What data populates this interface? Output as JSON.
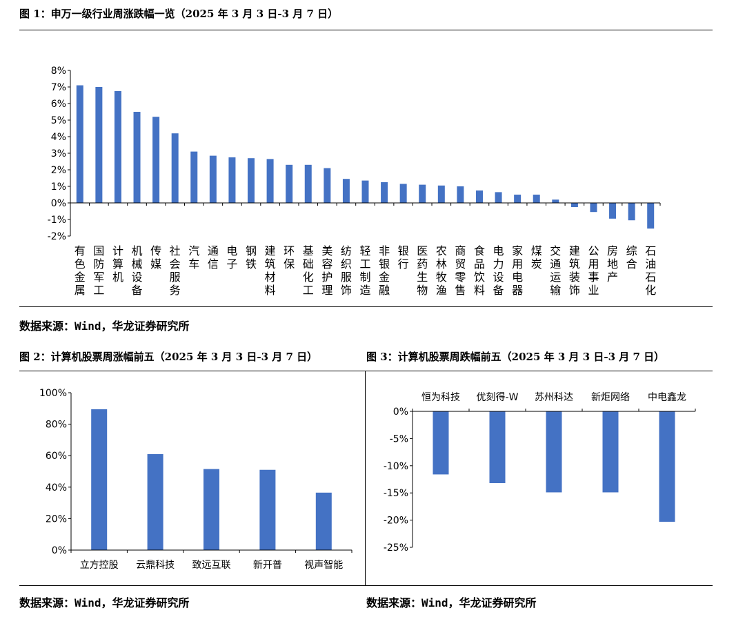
{
  "fig1": {
    "title": "图 1：申万一级行业周涨跌幅一览（2025 年 3 月 3 日-3 月 7 日）",
    "source": "数据来源：Wind，华龙证券研究所"
  },
  "fig2": {
    "title": "图 2：计算机股票周涨幅前五（2025 年 3 月 3 日-3 月 7 日）",
    "source": "数据来源：Wind，华龙证券研究所"
  },
  "fig3": {
    "title": "图 3：计算机股票周跌幅前五（2025 年 3 月 3 日-3 月 7 日）",
    "source": "数据来源：Wind，华龙证券研究所"
  },
  "colors": {
    "bar": "#4472C4",
    "axis": "#000000"
  },
  "chart_data": [
    {
      "type": "bar",
      "title": "申万一级行业周涨跌幅一览",
      "unit": "%",
      "categories": [
        "有色金属",
        "国防军工",
        "计算机",
        "机械设备",
        "传媒",
        "社会服务",
        "汽车",
        "通信",
        "电子",
        "钢铁",
        "建筑材料",
        "环保",
        "基础化工",
        "美容护理",
        "纺织服饰",
        "轻工制造",
        "非银金融",
        "银行",
        "医药生物",
        "农林牧渔",
        "商贸零售",
        "食品饮料",
        "电力设备",
        "家用电器",
        "煤炭",
        "交通运输",
        "建筑装饰",
        "公用事业",
        "房地产",
        "综合",
        "石油石化"
      ],
      "values": [
        7.1,
        7.0,
        6.75,
        5.5,
        5.2,
        4.2,
        3.1,
        2.85,
        2.75,
        2.7,
        2.65,
        2.3,
        2.3,
        2.1,
        1.45,
        1.35,
        1.25,
        1.15,
        1.1,
        1.05,
        1.0,
        0.75,
        0.65,
        0.5,
        0.5,
        0.2,
        -0.25,
        -0.55,
        -0.95,
        -1.05,
        -1.55
      ],
      "yticks": [
        "8%",
        "7%",
        "6%",
        "5%",
        "4%",
        "3%",
        "2%",
        "1%",
        "0%",
        "-1%",
        "-2%"
      ],
      "ylim": [
        -2,
        8
      ]
    },
    {
      "type": "bar",
      "title": "计算机股票周涨幅前五",
      "unit": "%",
      "categories": [
        "立方控股",
        "云鼎科技",
        "致远互联",
        "新开普",
        "视声智能"
      ],
      "values": [
        89.5,
        61,
        51.5,
        51,
        36.5
      ],
      "yticks": [
        "100%",
        "80%",
        "60%",
        "40%",
        "20%",
        "0%"
      ],
      "ylim": [
        0,
        100
      ]
    },
    {
      "type": "bar",
      "title": "计算机股票周跌幅前五",
      "unit": "%",
      "categories": [
        "恒为科技",
        "优刻得-W",
        "苏州科达",
        "新炬网络",
        "中电鑫龙"
      ],
      "values": [
        -11.6,
        -13.2,
        -14.9,
        -14.9,
        -20.3
      ],
      "yticks": [
        "0%",
        "-5%",
        "-10%",
        "-15%",
        "-20%",
        "-25%"
      ],
      "ylim": [
        -25,
        0
      ]
    }
  ]
}
